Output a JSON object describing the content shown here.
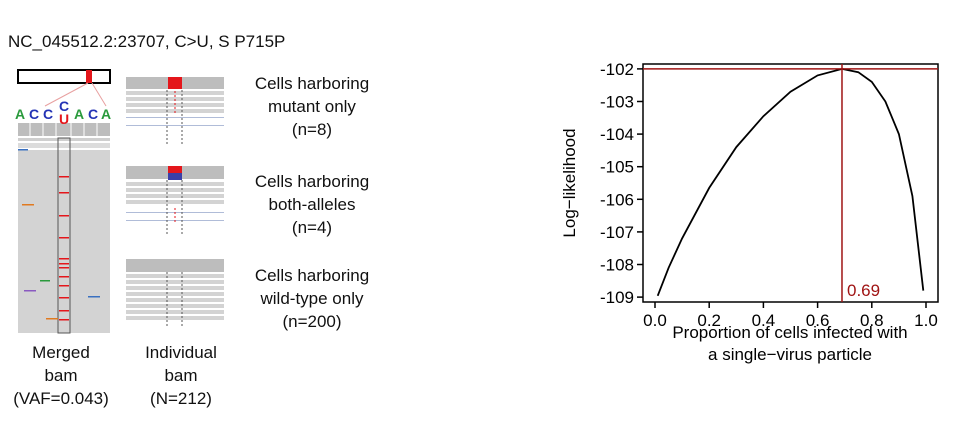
{
  "figure_title": "NC_045512.2:23707, C>U, S P715P",
  "reference_bases": [
    "A",
    "C",
    "C",
    "C",
    "A",
    "C",
    "A"
  ],
  "alt_base": "U",
  "merged_caption": [
    "Merged",
    "bam",
    "(VAF=0.043)"
  ],
  "individual_caption": [
    "Individual",
    "bam",
    "(N=212)"
  ],
  "groups": [
    {
      "lines": [
        "Cells harboring",
        "mutant only",
        "(n=8)"
      ]
    },
    {
      "lines": [
        "Cells harboring",
        "both-alleles",
        "(n=4)"
      ]
    },
    {
      "lines": [
        "Cells harboring",
        "wild-type only",
        "(n=200)"
      ]
    }
  ],
  "colors": {
    "mutant": "#e4161b",
    "ref_allele": "#3a3fa8",
    "base_A": "#2a9a3c",
    "base_C": "#2433b5",
    "base_U": "#e4161b",
    "read": "#d3d3d3",
    "curve": "#000000",
    "mle": "#a01414"
  },
  "chart_data": {
    "type": "line",
    "xlabel": "Proportion of cells infected with\na single−virus particle",
    "ylabel": "Log−likelihood",
    "xlim": [
      0,
      1
    ],
    "ylim": [
      -109.15,
      -101.85
    ],
    "xticks": [
      "0.0",
      "0.2",
      "0.4",
      "0.6",
      "0.8",
      "1.0"
    ],
    "yticks": [
      "-109",
      "-108",
      "-107",
      "-106",
      "-105",
      "-104",
      "-103",
      "-102"
    ],
    "x": [
      0.01,
      0.05,
      0.1,
      0.2,
      0.3,
      0.4,
      0.5,
      0.6,
      0.69,
      0.75,
      0.8,
      0.85,
      0.9,
      0.95,
      0.99
    ],
    "y": [
      -108.96,
      -108.1,
      -107.2,
      -105.65,
      -104.4,
      -103.45,
      -102.7,
      -102.2,
      -102.0,
      -102.1,
      -102.4,
      -103.0,
      -104.0,
      -105.9,
      -108.8
    ],
    "mle_x": 0.69,
    "mle_y": -102,
    "mle_label": "0.69",
    "grid": false
  }
}
